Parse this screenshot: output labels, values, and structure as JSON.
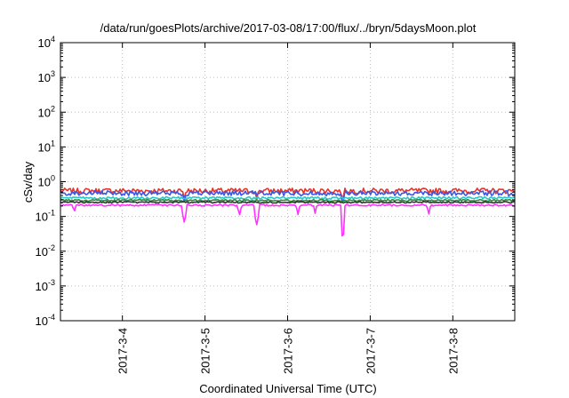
{
  "chart_data": {
    "type": "line",
    "title": "/data/run/goesPlots/archive/2017-03-08/17:00/flux/../bryn/5daysMoon.plot",
    "xlabel": "Coordinated Universal Time (UTC)",
    "ylabel": "cSv/day",
    "yscale": "log",
    "ylim": [
      0.0001,
      10000
    ],
    "xlim": [
      "2017-03-03 06:00",
      "2017-03-08 18:00"
    ],
    "grid": true,
    "xticks": [
      "2017-3-4",
      "2017-3-5",
      "2017-3-6",
      "2017-3-7",
      "2017-3-8"
    ],
    "xtick_dates": [
      "2017-03-04",
      "2017-03-05",
      "2017-03-06",
      "2017-03-07",
      "2017-03-08"
    ],
    "yticks": [
      {
        "base": "10",
        "exp": "-4",
        "value": 0.0001
      },
      {
        "base": "10",
        "exp": "-3",
        "value": 0.001
      },
      {
        "base": "10",
        "exp": "-2",
        "value": 0.01
      },
      {
        "base": "10",
        "exp": "-1",
        "value": 0.1
      },
      {
        "base": "10",
        "exp": "0",
        "value": 1
      },
      {
        "base": "10",
        "exp": "1",
        "value": 10
      },
      {
        "base": "10",
        "exp": "2",
        "value": 100
      },
      {
        "base": "10",
        "exp": "3",
        "value": 1000
      },
      {
        "base": "10",
        "exp": "4",
        "value": 10000
      }
    ],
    "series": [
      {
        "color": "#e8332a",
        "base": 0.55,
        "noise": 0.18,
        "dips": [
          {
            "x": "2017-03-04 18:00",
            "y": 0.3
          },
          {
            "x": "2017-03-05 15:00",
            "y": 0.3
          },
          {
            "x": "2017-03-06 16:00",
            "y": 0.28
          }
        ]
      },
      {
        "color": "#3a57e8",
        "base": 0.47,
        "noise": 0.16,
        "dips": [
          {
            "x": "2017-03-04 18:00",
            "y": 0.25
          },
          {
            "x": "2017-03-06 16:00",
            "y": 0.22
          }
        ]
      },
      {
        "color": "#29c7c7",
        "base": 0.34,
        "noise": 0.08,
        "dips": []
      },
      {
        "color": "#2e8b3a",
        "base": 0.29,
        "noise": 0.06,
        "dips": []
      },
      {
        "color": "#333333",
        "base": 0.255,
        "noise": 0.05,
        "dips": []
      },
      {
        "color": "#ff33ff",
        "base": 0.21,
        "noise": 0.06,
        "dips": [
          {
            "x": "2017-03-03 10:00",
            "y": 0.12
          },
          {
            "x": "2017-03-04 18:00",
            "y": 0.065
          },
          {
            "x": "2017-03-05 10:00",
            "y": 0.1
          },
          {
            "x": "2017-03-05 15:00",
            "y": 0.055
          },
          {
            "x": "2017-03-06 03:00",
            "y": 0.11
          },
          {
            "x": "2017-03-06 08:00",
            "y": 0.12
          },
          {
            "x": "2017-03-06 16:00",
            "y": 0.022
          },
          {
            "x": "2017-03-07 17:00",
            "y": 0.11
          }
        ]
      }
    ]
  }
}
